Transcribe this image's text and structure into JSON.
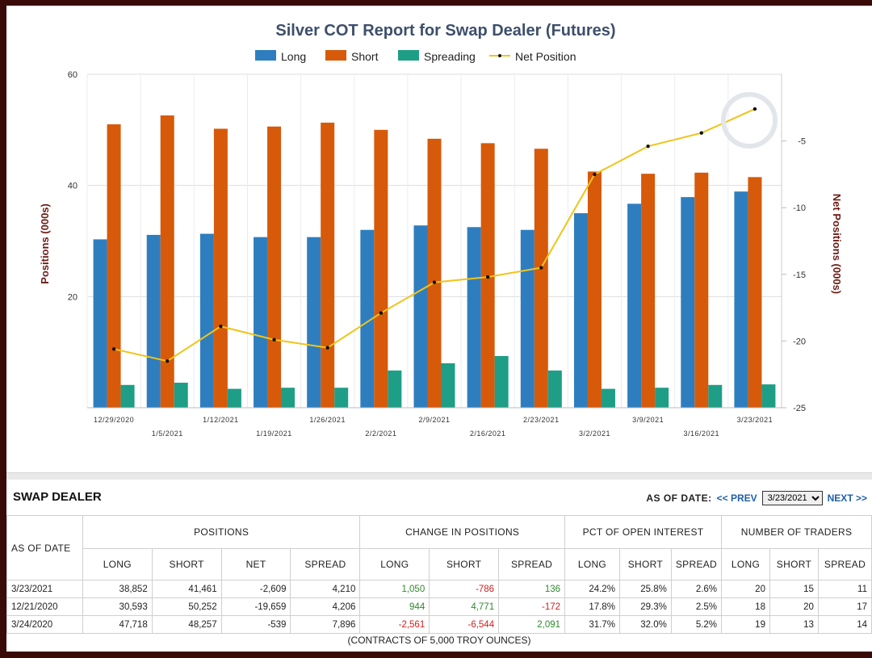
{
  "chart_data": {
    "type": "bar",
    "title": "Silver COT Report for Swap Dealer (Futures)",
    "ylabel": "Positions (000s)",
    "y2label": "Net Positions (000s)",
    "ylim": [
      0,
      60
    ],
    "y2lim": [
      -25,
      0
    ],
    "yticks": [
      20,
      40,
      60
    ],
    "y2ticks": [
      -5,
      -10,
      -15,
      -20,
      -25
    ],
    "categories": [
      "12/29/2020",
      "1/5/2021",
      "1/12/2021",
      "1/19/2021",
      "1/26/2021",
      "2/2/2021",
      "2/9/2021",
      "2/16/2021",
      "2/23/2021",
      "3/2/2021",
      "3/9/2021",
      "3/16/2021",
      "3/23/2021"
    ],
    "series": [
      {
        "name": "Long",
        "type": "bar",
        "color": "#2e7ebf",
        "values": [
          30.3,
          31.1,
          31.3,
          30.7,
          30.7,
          32.0,
          32.8,
          32.5,
          32.0,
          35.0,
          36.7,
          37.9,
          38.9
        ]
      },
      {
        "name": "Short",
        "type": "bar",
        "color": "#d65a0a",
        "values": [
          51.0,
          52.6,
          50.2,
          50.6,
          51.3,
          50.0,
          48.4,
          47.6,
          46.6,
          42.5,
          42.1,
          42.3,
          41.5
        ]
      },
      {
        "name": "Spreading",
        "type": "bar",
        "color": "#1e9e86",
        "values": [
          4.1,
          4.5,
          3.4,
          3.6,
          3.6,
          6.7,
          8.0,
          9.3,
          6.7,
          3.4,
          3.6,
          4.1,
          4.2
        ]
      },
      {
        "name": "Net Position",
        "type": "line",
        "axis": "right",
        "color": "#f0c419",
        "values": [
          -20.6,
          -21.5,
          -18.9,
          -19.9,
          -20.5,
          -17.9,
          -15.6,
          -15.2,
          -14.5,
          -7.5,
          -5.4,
          -4.4,
          -2.6
        ]
      }
    ],
    "grid": true,
    "legend": "top"
  },
  "table": {
    "section_title": "SWAP DEALER",
    "as_of_label": "AS OF DATE:",
    "prev_label": "<< PREV",
    "next_label": "NEXT >>",
    "selected_date": "3/23/2021",
    "date_col_header": "AS OF DATE",
    "groups": [
      "POSITIONS",
      "CHANGE IN POSITIONS",
      "PCT OF OPEN INTEREST",
      "NUMBER OF TRADERS"
    ],
    "subheaders": [
      "LONG",
      "SHORT",
      "NET",
      "SPREAD",
      "LONG",
      "SHORT",
      "SPREAD",
      "LONG",
      "SHORT",
      "SPREAD",
      "LONG",
      "SHORT",
      "SPREAD"
    ],
    "rows": [
      [
        "3/23/2021",
        "38,852",
        "41,461",
        "-2,609",
        "4,210",
        "1,050",
        "-786",
        "136",
        "24.2%",
        "25.8%",
        "2.6%",
        "20",
        "15",
        "11"
      ],
      [
        "12/21/2020",
        "30,593",
        "50,252",
        "-19,659",
        "4,206",
        "944",
        "4,771",
        "-172",
        "17.8%",
        "29.3%",
        "2.5%",
        "18",
        "20",
        "17"
      ],
      [
        "3/24/2020",
        "47,718",
        "48,257",
        "-539",
        "7,896",
        "-2,561",
        "-6,544",
        "2,091",
        "31.7%",
        "32.0%",
        "5.2%",
        "19",
        "13",
        "14"
      ]
    ],
    "footer": "(CONTRACTS OF 5,000 TROY OUNCES)"
  }
}
